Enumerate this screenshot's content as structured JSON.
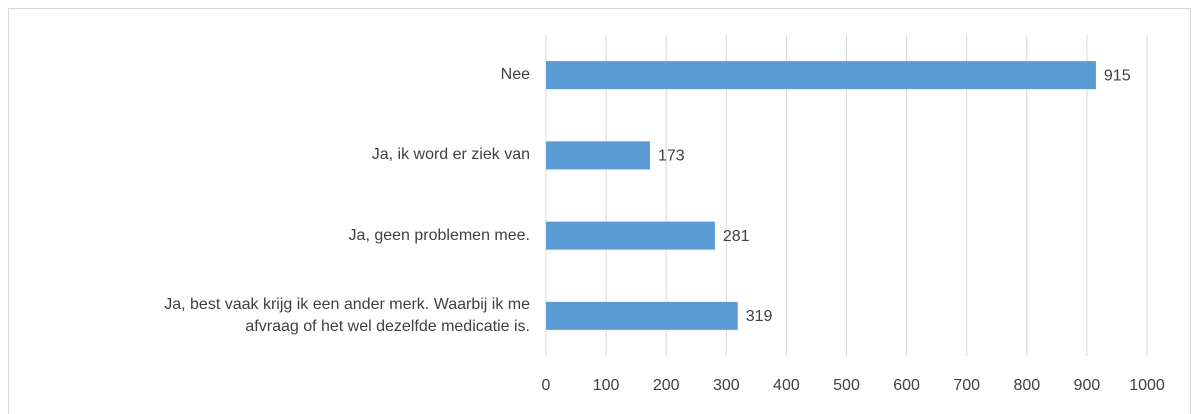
{
  "chart_data": {
    "type": "bar",
    "orientation": "horizontal",
    "categories": [
      "Nee",
      "Ja, ik word er ziek van",
      "Ja, geen problemen mee.",
      "Ja, best vaak krijg ik een ander merk. Waarbij ik me\nafvraag of het wel dezelfde medicatie is."
    ],
    "values": [
      915,
      173,
      281,
      319
    ],
    "color": "#5b9bd5",
    "xlim": [
      0,
      1000
    ],
    "xticks": [
      0,
      100,
      200,
      300,
      400,
      500,
      600,
      700,
      800,
      900,
      1000
    ],
    "grid": true
  }
}
